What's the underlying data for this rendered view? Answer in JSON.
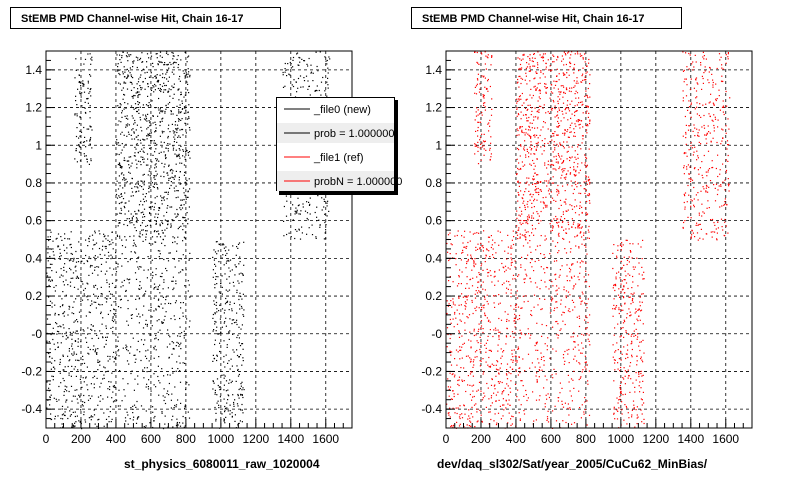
{
  "chart_data": [
    {
      "type": "scatter",
      "title": "StEMB PMD Channel-wise Hit, Chain 16-17",
      "xlabel": "st_physics_6080011_raw_1020004",
      "ylabel": "",
      "xlim": [
        0,
        1750
      ],
      "ylim": [
        -0.5,
        1.5
      ],
      "x_ticks": [
        "0",
        "200",
        "400",
        "600",
        "800",
        "1000",
        "1200",
        "1400",
        "1600"
      ],
      "y_ticks": [
        "-0.4",
        "-0.2",
        "-0",
        "0.2",
        "0.4",
        "0.6",
        "0.8",
        "1",
        "1.2",
        "1.4"
      ],
      "grid": true,
      "legend_position": "top-right",
      "legend": [
        {
          "label": "_file0 (new)",
          "color": "#000000"
        },
        {
          "label": "prob = 1.000000",
          "color": "#000000"
        },
        {
          "label": "_file1 (ref)",
          "color": "#ff0000"
        },
        {
          "label": "probN = 1.000000",
          "color": "#ff0000"
        }
      ],
      "series": [
        {
          "name": "_file0 (new)",
          "color": "#000000",
          "clusters": [
            {
              "x": [
                160,
                260
              ],
              "y": [
                0.9,
                1.5
              ],
              "n": 110
            },
            {
              "x": [
                0,
                400
              ],
              "y": [
                -0.5,
                0.55
              ],
              "n": 600
            },
            {
              "x": [
                400,
                820
              ],
              "y": [
                0.5,
                1.5
              ],
              "n": 900
            },
            {
              "x": [
                400,
                820
              ],
              "y": [
                -0.5,
                0.5
              ],
              "n": 400
            },
            {
              "x": [
                950,
                1130
              ],
              "y": [
                -0.5,
                0.5
              ],
              "n": 300
            },
            {
              "x": [
                1350,
                1620
              ],
              "y": [
                0.5,
                1.5
              ],
              "n": 350
            }
          ]
        }
      ]
    },
    {
      "type": "scatter",
      "title": "StEMB PMD Channel-wise Hit, Chain 16-17",
      "xlabel": "dev/daq_sl302/Sat/year_2005/CuCu62_MinBias/",
      "ylabel": "",
      "xlim": [
        0,
        1750
      ],
      "ylim": [
        -0.5,
        1.5
      ],
      "x_ticks": [
        "0",
        "200",
        "400",
        "600",
        "800",
        "1000",
        "1200",
        "1400",
        "1600"
      ],
      "y_ticks": [
        "-0.4",
        "-0.2",
        "-0",
        "0.2",
        "0.4",
        "0.6",
        "0.8",
        "1",
        "1.2",
        "1.4"
      ],
      "grid": true,
      "series": [
        {
          "name": "_file1 (ref)",
          "color": "#ff0000",
          "clusters": [
            {
              "x": [
                160,
                260
              ],
              "y": [
                0.9,
                1.5
              ],
              "n": 110
            },
            {
              "x": [
                0,
                400
              ],
              "y": [
                -0.5,
                0.55
              ],
              "n": 600
            },
            {
              "x": [
                400,
                820
              ],
              "y": [
                0.5,
                1.5
              ],
              "n": 900
            },
            {
              "x": [
                400,
                820
              ],
              "y": [
                -0.5,
                0.5
              ],
              "n": 400
            },
            {
              "x": [
                950,
                1130
              ],
              "y": [
                -0.5,
                0.5
              ],
              "n": 300
            },
            {
              "x": [
                1350,
                1620
              ],
              "y": [
                0.5,
                1.5
              ],
              "n": 350
            }
          ]
        }
      ]
    }
  ]
}
